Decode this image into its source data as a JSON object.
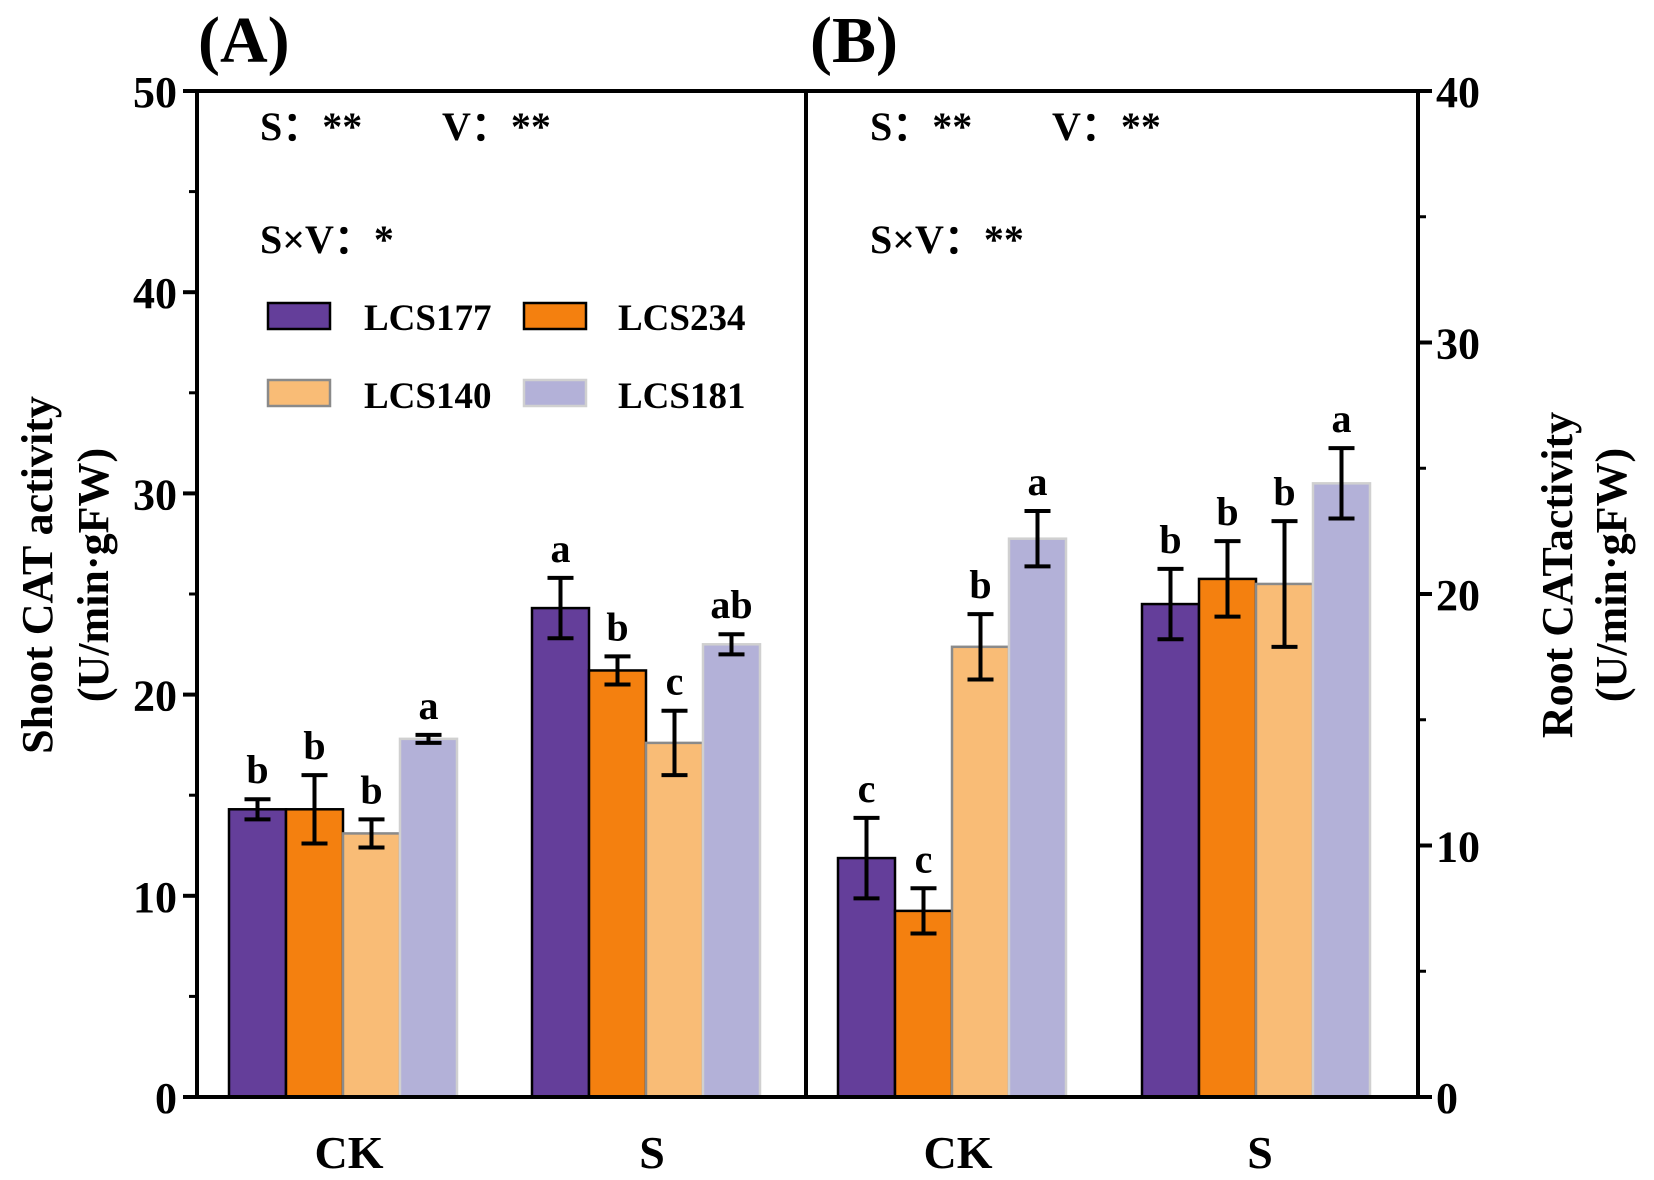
{
  "chart_data": [
    {
      "panel_label": "(A)",
      "type": "bar",
      "ylabel_line1": "Shoot CAT activity",
      "ylabel_line2": "(U/min·gFW)",
      "ylim": [
        0,
        50
      ],
      "yticks": [
        "0",
        "10",
        "20",
        "30",
        "40",
        "50"
      ],
      "ytick_values": [
        0,
        10,
        20,
        30,
        40,
        50
      ],
      "categories": [
        "CK",
        "S"
      ],
      "stats": {
        "s": "S：**",
        "v": "V：**",
        "sv": "S×V：*"
      },
      "series": [
        {
          "name": "LCS177",
          "values": [
            14.3,
            24.3
          ],
          "errors": [
            0.5,
            1.5
          ],
          "letters": [
            "b",
            "a"
          ]
        },
        {
          "name": "LCS234",
          "values": [
            14.3,
            21.2
          ],
          "errors": [
            1.7,
            0.7
          ],
          "letters": [
            "b",
            "b"
          ]
        },
        {
          "name": "LCS140",
          "values": [
            13.1,
            17.6
          ],
          "errors": [
            0.7,
            1.6
          ],
          "letters": [
            "b",
            "c"
          ]
        },
        {
          "name": "LCS181",
          "values": [
            17.8,
            22.5
          ],
          "errors": [
            0.2,
            0.5
          ],
          "letters": [
            "a",
            "ab"
          ]
        }
      ]
    },
    {
      "panel_label": "(B)",
      "type": "bar",
      "ylabel_line1": "Root CATactivity",
      "ylabel_line2": "(U/min·gFW)",
      "ylim": [
        0,
        40
      ],
      "yticks": [
        "0",
        "10",
        "20",
        "30",
        "40"
      ],
      "ytick_values": [
        0,
        10,
        20,
        30,
        40
      ],
      "categories": [
        "CK",
        "S"
      ],
      "stats": {
        "s": "S：**",
        "v": "V：**",
        "sv": "S×V：**"
      },
      "series": [
        {
          "name": "LCS177",
          "values": [
            9.5,
            19.6
          ],
          "errors": [
            1.6,
            1.4
          ],
          "letters": [
            "c",
            "b"
          ]
        },
        {
          "name": "LCS234",
          "values": [
            7.4,
            20.6
          ],
          "errors": [
            0.9,
            1.5
          ],
          "letters": [
            "c",
            "b"
          ]
        },
        {
          "name": "LCS140",
          "values": [
            17.9,
            20.4
          ],
          "errors": [
            1.3,
            2.5
          ],
          "letters": [
            "b",
            "b"
          ]
        },
        {
          "name": "LCS181",
          "values": [
            22.2,
            24.4
          ],
          "errors": [
            1.1,
            1.4
          ],
          "letters": [
            "a",
            "a"
          ]
        }
      ]
    }
  ],
  "legend": [
    {
      "name": "LCS177",
      "fill": "#643e9a",
      "stroke": "#000000"
    },
    {
      "name": "LCS234",
      "fill": "#f4800f",
      "stroke": "#000000"
    },
    {
      "name": "LCS140",
      "fill": "#f9bc76",
      "stroke": "#8a8a8a"
    },
    {
      "name": "LCS181",
      "fill": "#b3b1d8",
      "stroke": "#d0d0d0"
    }
  ]
}
